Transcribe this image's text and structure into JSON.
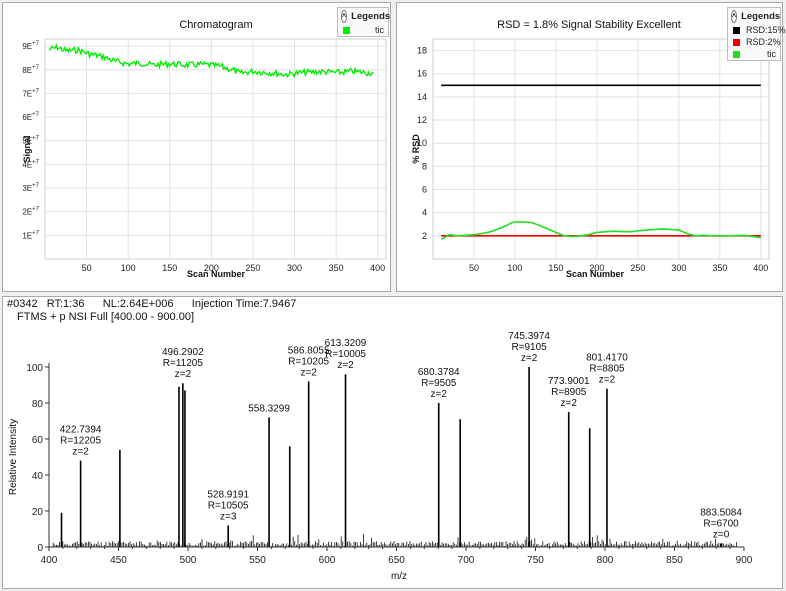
{
  "legend_header": "Legends",
  "legend_toggle_glyph": "˄",
  "chromatogram": {
    "chart_data": {
      "type": "line",
      "title": "Chromatogram",
      "xlabel": "Scan Number",
      "ylabel": "Signal",
      "xlim": [
        0,
        410
      ],
      "ylim": [
        0,
        93000000
      ],
      "x_ticks": [
        50,
        100,
        150,
        200,
        250,
        300,
        350,
        400
      ],
      "y_ticks": [
        {
          "value": 10000000,
          "label": "1E",
          "exp": "+7"
        },
        {
          "value": 20000000,
          "label": "2E",
          "exp": "+7"
        },
        {
          "value": 30000000,
          "label": "3E",
          "exp": "+7"
        },
        {
          "value": 40000000,
          "label": "4E",
          "exp": "+7"
        },
        {
          "value": 50000000,
          "label": "5E",
          "exp": "+7"
        },
        {
          "value": 60000000,
          "label": "6E",
          "exp": "+7"
        },
        {
          "value": 70000000,
          "label": "7E",
          "exp": "+7"
        },
        {
          "value": 80000000,
          "label": "8E",
          "exp": "+7"
        },
        {
          "value": 90000000,
          "label": "9E",
          "exp": "+7"
        }
      ],
      "grid": true,
      "series": [
        {
          "name": "tic",
          "color": "#00ee00",
          "x": [
            5,
            15,
            25,
            40,
            55,
            70,
            85,
            100,
            115,
            130,
            150,
            170,
            190,
            210,
            225,
            235,
            250,
            270,
            290,
            310,
            330,
            350,
            370,
            395
          ],
          "y": [
            88500000,
            89500000,
            88000000,
            88300000,
            86500000,
            85500000,
            83500000,
            82500000,
            82800000,
            82000000,
            82500000,
            82000000,
            82200000,
            81500000,
            80000000,
            78500000,
            79300000,
            78800000,
            78000000,
            78800000,
            79200000,
            78800000,
            79300000,
            78500000
          ]
        }
      ],
      "legend": "top-right"
    }
  },
  "rsd": {
    "chart_data": {
      "type": "line",
      "title": "RSD = 1.8% Signal Stability Excellent",
      "xlabel": "Scan Number",
      "ylabel": "% RSD",
      "xlim": [
        0,
        410
      ],
      "ylim": [
        0,
        19
      ],
      "x_ticks": [
        50,
        100,
        150,
        200,
        250,
        300,
        350,
        400
      ],
      "y_ticks": [
        2,
        4,
        6,
        8,
        10,
        12,
        14,
        16,
        18
      ],
      "grid": true,
      "series": [
        {
          "name": "RSD:15%",
          "color": "#000000",
          "x": [
            10,
            400
          ],
          "y": [
            15,
            15
          ]
        },
        {
          "name": "RSD:2%",
          "color": "#ee0000",
          "x": [
            10,
            400
          ],
          "y": [
            2,
            2
          ]
        },
        {
          "name": "tic",
          "color": "#22dd22",
          "x": [
            10,
            20,
            30,
            40,
            50,
            60,
            70,
            80,
            90,
            95,
            100,
            110,
            120,
            130,
            140,
            150,
            160,
            170,
            180,
            190,
            200,
            220,
            240,
            260,
            280,
            300,
            310,
            320,
            330,
            340,
            360,
            380,
            400
          ],
          "y": [
            1.7,
            2.1,
            2.0,
            2.05,
            2.1,
            2.2,
            2.35,
            2.6,
            2.9,
            3.1,
            3.2,
            3.2,
            3.15,
            2.9,
            2.6,
            2.3,
            2.0,
            1.95,
            2.0,
            2.1,
            2.3,
            2.4,
            2.35,
            2.5,
            2.6,
            2.5,
            2.2,
            2.0,
            2.05,
            2.0,
            2.0,
            2.05,
            1.85
          ]
        }
      ],
      "legend": "top-right"
    }
  },
  "spectrum": {
    "header_line1": "#0342   RT:1:36      NL:2.64E+006      Injection Time:7.9467",
    "header_line2": "FTMS + p NSI Full [400.00 - 900.00]",
    "chart_data": {
      "type": "bar",
      "xlabel": "m/z",
      "ylabel": "Relative Intensity",
      "xlim": [
        400,
        900
      ],
      "ylim": [
        0,
        100
      ],
      "x_ticks": [
        400,
        450,
        500,
        550,
        600,
        650,
        700,
        750,
        800,
        850,
        900
      ],
      "y_ticks": [
        0,
        20,
        40,
        60,
        80,
        100
      ],
      "grid": false,
      "peaks": [
        {
          "mz": 409.0,
          "intensity": 19
        },
        {
          "mz": 422.7394,
          "intensity": 48,
          "label": [
            "422.7394",
            "R=12205",
            "z=2"
          ]
        },
        {
          "mz": 451.0,
          "intensity": 54
        },
        {
          "mz": 493.5,
          "intensity": 89
        },
        {
          "mz": 496.2902,
          "intensity": 91,
          "label": [
            "496.2902",
            "R=11205",
            "z=2"
          ]
        },
        {
          "mz": 497.8,
          "intensity": 87
        },
        {
          "mz": 528.9191,
          "intensity": 12,
          "label": [
            "528.9191",
            "R=10505",
            "z=3"
          ]
        },
        {
          "mz": 558.3299,
          "intensity": 72,
          "label": [
            "558.3299"
          ]
        },
        {
          "mz": 573.2,
          "intensity": 56
        },
        {
          "mz": 586.8055,
          "intensity": 92,
          "label": [
            "586.8055",
            "R=10205",
            "z=2"
          ]
        },
        {
          "mz": 613.3209,
          "intensity": 96,
          "label": [
            "613.3209",
            "R=10005",
            "z=2"
          ]
        },
        {
          "mz": 680.3784,
          "intensity": 80,
          "label": [
            "680.3784",
            "R=9505",
            "z=2"
          ]
        },
        {
          "mz": 695.8,
          "intensity": 71
        },
        {
          "mz": 745.3974,
          "intensity": 100,
          "label": [
            "745.3974",
            "R=9105",
            "z=2"
          ]
        },
        {
          "mz": 773.9001,
          "intensity": 75,
          "label": [
            "773.9001",
            "R=8905",
            "z=2"
          ]
        },
        {
          "mz": 789.0,
          "intensity": 66
        },
        {
          "mz": 801.417,
          "intensity": 88,
          "label": [
            "801.4170",
            "R=8805",
            "z=2"
          ]
        },
        {
          "mz": 883.5084,
          "intensity": 2,
          "label": [
            "883.5084",
            "R=6700",
            "z=0"
          ]
        }
      ]
    }
  }
}
